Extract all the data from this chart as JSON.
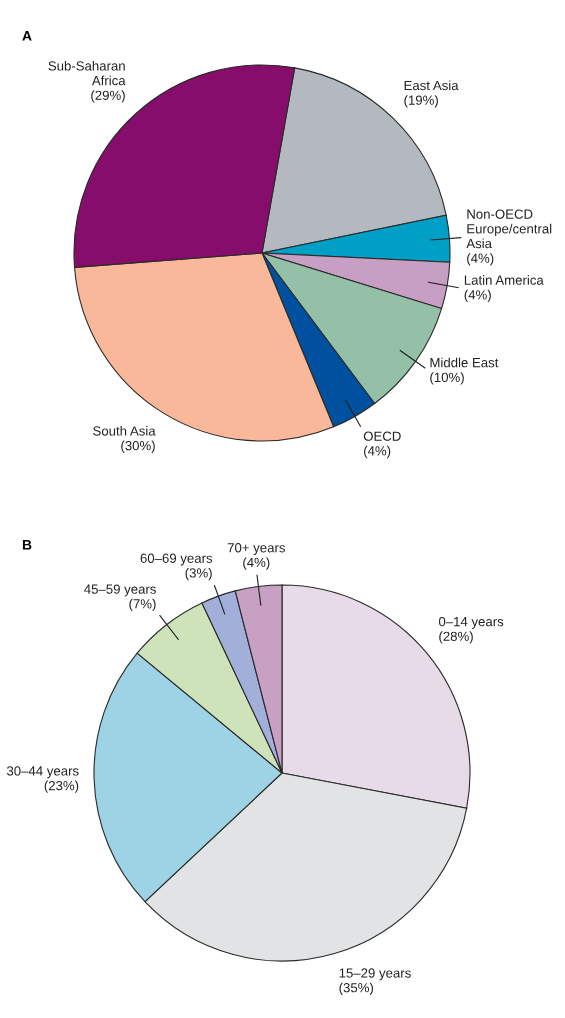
{
  "chart_data": [
    {
      "type": "pie",
      "title": "A",
      "categories": [
        "East Asia",
        "Non-OECD\nEurope/central\nAsia",
        "Latin America",
        "Middle East",
        "OECD",
        "South Asia",
        "Sub-Saharan\nAfrica"
      ],
      "values": [
        19,
        4,
        4,
        10,
        4,
        30,
        29
      ],
      "value_labels": [
        "(19%)",
        "(4%)",
        "(4%)",
        "(10%)",
        "(4%)",
        "(30%)",
        "(29%)"
      ],
      "colors": [
        "#b4b9bf",
        "#00a0c6",
        "#c79fc4",
        "#93c0a6",
        "#0050a0",
        "#f9b89a",
        "#860d6c"
      ]
    },
    {
      "type": "pie",
      "title": "B",
      "categories": [
        "0–14 years",
        "15–29 years",
        "30–44 years",
        "45–59 years",
        "60–69 years",
        "70+ years"
      ],
      "values": [
        28,
        35,
        23,
        7,
        3,
        4
      ],
      "value_labels": [
        "(28%)",
        "(35%)",
        "(23%)",
        "(7%)",
        "(3%)",
        "(4%)"
      ],
      "colors": [
        "#e8dbe8",
        "#e2e3e5",
        "#9dd3e4",
        "#cfe3bb",
        "#a1afd9",
        "#c7a0c4"
      ]
    }
  ]
}
